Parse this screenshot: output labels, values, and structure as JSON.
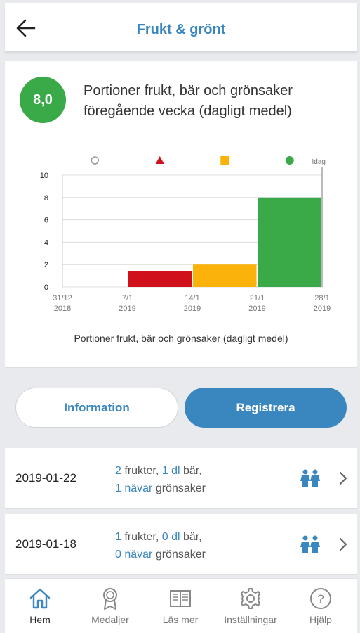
{
  "header": {
    "title": "Frukt & grönt",
    "back_icon": "arrow-left-icon"
  },
  "summary": {
    "score": "8,0",
    "text": "Portioner frukt, bär och grönsaker föregående vecka (dagligt medel)",
    "score_color": "#3aaa49"
  },
  "chart_data": {
    "type": "bar",
    "categories": [
      "31/12 2018",
      "7/1 2019",
      "14/1 2019",
      "21/1 2019",
      "28/1 2019"
    ],
    "x_labels": [
      [
        "31/12",
        "2018"
      ],
      [
        "7/1",
        "2019"
      ],
      [
        "14/1",
        "2019"
      ],
      [
        "21/1",
        "2019"
      ],
      [
        "28/1",
        "2019"
      ]
    ],
    "bars": [
      {
        "week": "7/1 2019",
        "value": 1.4,
        "color": "#d0101b"
      },
      {
        "week": "14/1 2019",
        "value": 2.0,
        "color": "#fbb30b"
      },
      {
        "week": "21/1 2019",
        "value": 8.0,
        "color": "#3aaa49"
      }
    ],
    "legend_markers": [
      {
        "shape": "circle-outline",
        "color": "#9a9a9a"
      },
      {
        "shape": "triangle",
        "color": "#d0101b"
      },
      {
        "shape": "square",
        "color": "#fbb30b"
      },
      {
        "shape": "circle",
        "color": "#3aaa49"
      }
    ],
    "today_label": "Idag",
    "y_ticks": [
      0,
      2,
      4,
      6,
      8,
      10
    ],
    "ylim": [
      0,
      10
    ],
    "grid": true,
    "caption": "Portioner frukt, bär och grönsaker (dagligt medel)"
  },
  "buttons": {
    "information": "Information",
    "register": "Registrera"
  },
  "entries": [
    {
      "date": "2019-01-22",
      "fruits_n": "2",
      "fruits_label": "frukter,",
      "berries_n": "1 dl",
      "berries_label": "bär,",
      "veg_n": "1 nävar",
      "veg_label": "grönsaker"
    },
    {
      "date": "2019-01-18",
      "fruits_n": "1",
      "fruits_label": "frukter,",
      "berries_n": "0 dl",
      "berries_label": "bär,",
      "veg_n": "0 nävar",
      "veg_label": "grönsaker"
    }
  ],
  "tabs": [
    {
      "label": "Hem",
      "icon": "home-icon",
      "active": true
    },
    {
      "label": "Medaljer",
      "icon": "medal-icon"
    },
    {
      "label": "Läs mer",
      "icon": "book-icon"
    },
    {
      "label": "Inställningar",
      "icon": "gear-icon"
    },
    {
      "label": "Hjälp",
      "icon": "help-icon"
    }
  ],
  "colors": {
    "accent": "#3a86bf",
    "green": "#3aaa49",
    "red": "#d0101b",
    "yellow": "#fbb30b"
  }
}
